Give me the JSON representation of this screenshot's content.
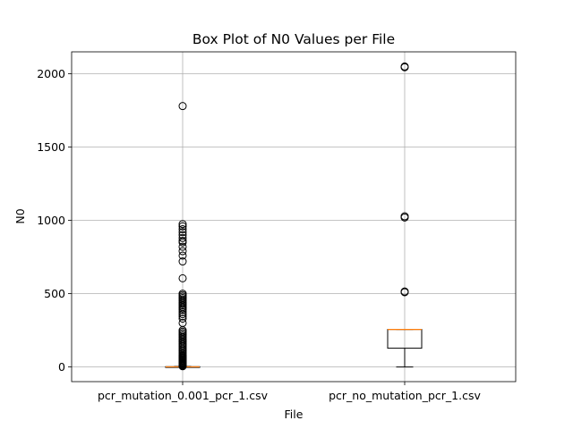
{
  "chart_data": {
    "type": "box",
    "title": "Box Plot of N0 Values per File",
    "xlabel": "File",
    "ylabel": "N0",
    "ylim": [
      -100,
      2150
    ],
    "yticks": [
      0,
      500,
      1000,
      1500,
      2000
    ],
    "grid": true,
    "legend": "none",
    "colors": {
      "median": "#ff7f0e",
      "box": "#000000",
      "grid": "#b0b0b0"
    },
    "categories": [
      "pcr_mutation_0.001_pcr_1.csv",
      "pcr_no_mutation_pcr_1.csv"
    ],
    "boxes": [
      {
        "name": "pcr_mutation_0.001_pcr_1.csv",
        "whisker_low": 0,
        "q1": 0,
        "median": 1,
        "q3": 2,
        "whisker_high": 4,
        "outliers": [
          5,
          8,
          10,
          12,
          15,
          18,
          20,
          22,
          25,
          28,
          30,
          35,
          40,
          45,
          50,
          55,
          60,
          65,
          70,
          75,
          80,
          90,
          100,
          110,
          120,
          130,
          140,
          150,
          160,
          170,
          180,
          190,
          200,
          210,
          220,
          230,
          240,
          250,
          300,
          330,
          345,
          360,
          375,
          390,
          400,
          410,
          420,
          430,
          440,
          450,
          460,
          470,
          480,
          490,
          500,
          605,
          720,
          760,
          790,
          820,
          850,
          860,
          880,
          900,
          920,
          940,
          960,
          975,
          1780
        ]
      },
      {
        "name": "pcr_no_mutation_pcr_1.csv",
        "whisker_low": 0,
        "q1": 128,
        "median": 256,
        "q3": 256,
        "whisker_high": 256,
        "outliers": [
          510,
          515,
          1020,
          1028,
          2045,
          2050
        ]
      }
    ]
  }
}
